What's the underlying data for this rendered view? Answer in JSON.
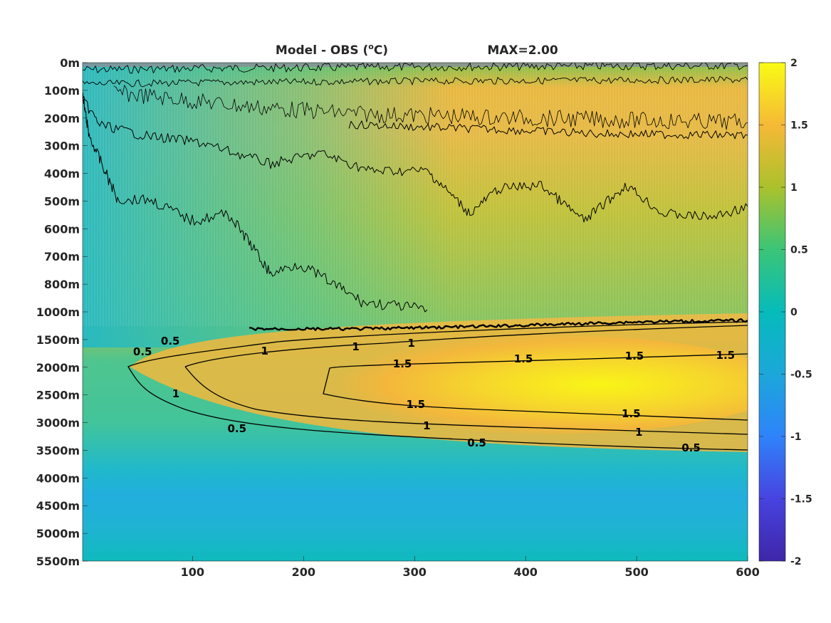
{
  "chart_data": {
    "type": "heatmap",
    "title": "Model - OBS (°C)",
    "title_prefix": "Model - OBS (",
    "title_unit_sup": "o",
    "title_unit_tail": "C)",
    "subtitle": "MAX=2.00",
    "xlabel": "",
    "ylabel": "",
    "x_ticks": [
      100,
      200,
      300,
      400,
      500,
      600
    ],
    "xlim": [
      1,
      600
    ],
    "y_tick_labels": [
      "0m",
      "100m",
      "200m",
      "300m",
      "400m",
      "500m",
      "600m",
      "700m",
      "800m",
      "1000m",
      "1500m",
      "2000m",
      "2500m",
      "3000m",
      "3500m",
      "4000m",
      "4500m",
      "5000m",
      "5500m"
    ],
    "colorbar": {
      "ticks": [
        "2",
        "1.5",
        "1",
        "0.5",
        "0",
        "-0.5",
        "-1",
        "-1.5",
        "-2"
      ],
      "clim": [
        -2,
        2
      ],
      "colormap": "parula",
      "colors": [
        "#3e26a8",
        "#4743e0",
        "#2f83fa",
        "#1ca7da",
        "#06bbbb",
        "#3bc577",
        "#abc12c",
        "#f6b937",
        "#f9fb15"
      ]
    },
    "contour_levels": [
      0.5,
      1,
      1.5
    ],
    "contour_labels": [
      {
        "text": "0.5",
        "x": 140,
        "level": "2900m"
      },
      {
        "text": "1",
        "x": 85,
        "level": "2450m"
      },
      {
        "text": "1",
        "x": 165,
        "level": "1850m"
      },
      {
        "text": "1",
        "x": 247,
        "level": "1780m"
      },
      {
        "text": "1",
        "x": 297,
        "level": "1730m"
      },
      {
        "text": "1.5",
        "x": 289,
        "level": "1990m"
      },
      {
        "text": "1.5",
        "x": 398,
        "level": "1960m"
      },
      {
        "text": "1.5",
        "x": 498,
        "level": "1940m"
      },
      {
        "text": "1.5",
        "x": 580,
        "level": "1930m"
      },
      {
        "text": "1.5",
        "x": 301,
        "level": "2640m"
      },
      {
        "text": "1.5",
        "x": 495,
        "level": "2780m"
      },
      {
        "text": "1",
        "x": 311,
        "level": "3050m"
      },
      {
        "text": "1",
        "x": 502,
        "level": "3190m"
      },
      {
        "text": "0.5",
        "x": 356,
        "level": "3330m"
      },
      {
        "text": "0.5",
        "x": 549,
        "level": "3420m"
      },
      {
        "text": "0.5",
        "x": 55,
        "level": "1700m"
      },
      {
        "text": "0.5",
        "x": 80,
        "level": "1600m"
      }
    ]
  }
}
